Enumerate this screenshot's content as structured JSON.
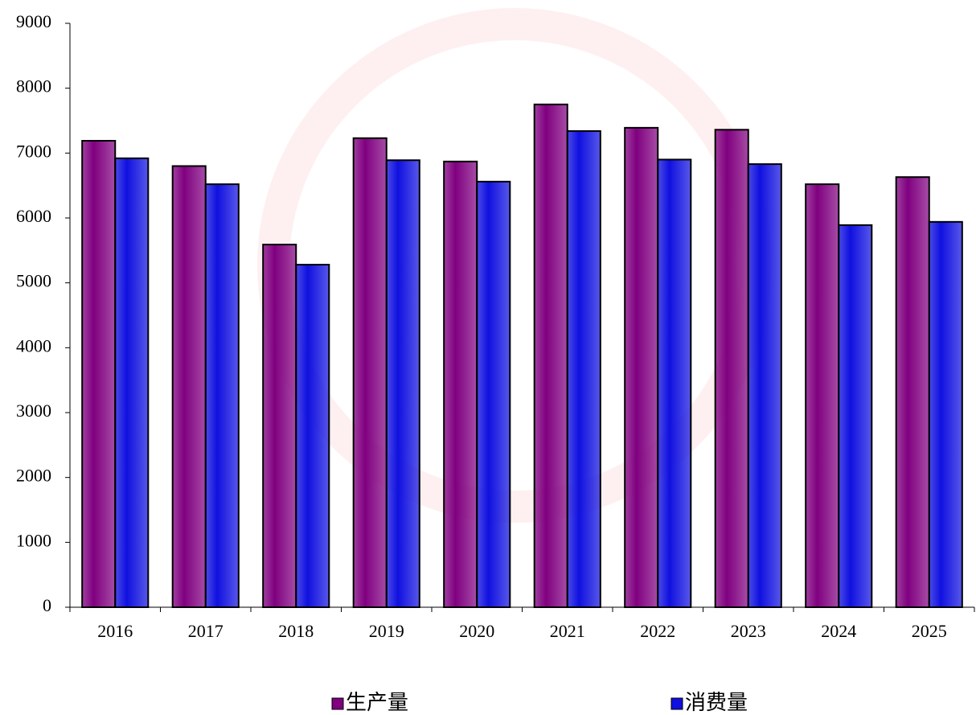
{
  "chart_data": {
    "type": "bar",
    "categories": [
      "2016",
      "2017",
      "2018",
      "2019",
      "2020",
      "2021",
      "2022",
      "2023",
      "2024",
      "2025"
    ],
    "series": [
      {
        "name": "生产量",
        "color": "#800080",
        "values": [
          7190,
          6800,
          5590,
          7230,
          6870,
          7750,
          7390,
          7360,
          6520,
          6630
        ]
      },
      {
        "name": "消费量",
        "color": "#1010e0",
        "values": [
          6920,
          6520,
          5280,
          6890,
          6560,
          7340,
          6900,
          6830,
          5890,
          5940
        ]
      }
    ],
    "ylim": [
      0,
      9000
    ],
    "yticks": [
      0,
      1000,
      2000,
      3000,
      4000,
      5000,
      6000,
      7000,
      8000,
      9000
    ],
    "legend": "bottom"
  }
}
